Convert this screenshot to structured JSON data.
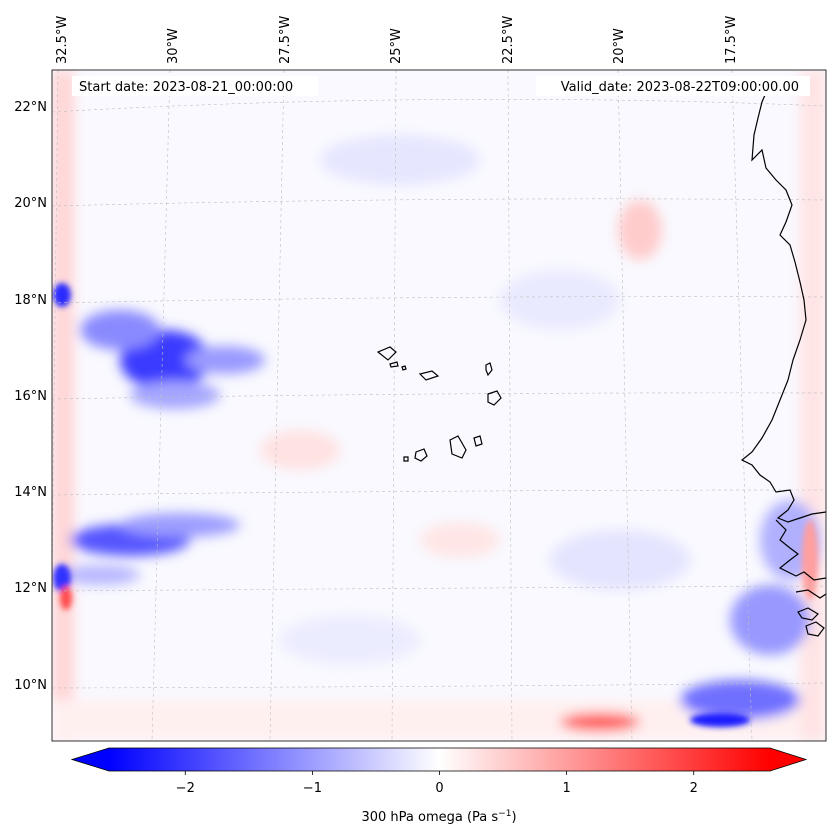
{
  "map": {
    "start_date": "Start date: 2023-08-21_00:00:00",
    "valid_date": "Valid_date: 2023-08-22T09:00:00.00",
    "lon_labels": [
      "32.5°W",
      "30°W",
      "27.5°W",
      "25°W",
      "22.5°W",
      "20°W",
      "17.5°W"
    ],
    "lat_labels": [
      "22°N",
      "20°N",
      "18°N",
      "16°N",
      "14°N",
      "12°N",
      "10°N"
    ],
    "field": "300 hPa omega"
  },
  "colorbar": {
    "ticks": [
      "−2",
      "−1",
      "0",
      "1",
      "2"
    ],
    "tick_values": [
      -2,
      -1,
      0,
      1,
      2
    ],
    "range": [
      -2.6,
      2.6
    ],
    "label_main": "300 hPa omega (Pa s",
    "label_exp": "−1",
    "label_close": ")",
    "colors": {
      "low": "#0000ff",
      "mid": "#ffffff",
      "high": "#ff0000"
    }
  },
  "chart_data": {
    "type": "heatmap",
    "title": "",
    "variable": "300 hPa omega",
    "units": "Pa s^-1",
    "colorbar_range": [
      -2.6,
      2.6
    ],
    "colormap": "bwr",
    "features": [
      {
        "region": "west 16.5-17.5°N, ~30°W",
        "value": -2.0
      },
      {
        "region": "west 12-13°N, ~31°W",
        "value": -2.0
      },
      {
        "region": "southeast 9-10°N, 17-18°W",
        "value": -2.0
      },
      {
        "region": "south 9°N, ~20.5°W",
        "value": 1.5
      }
    ]
  }
}
